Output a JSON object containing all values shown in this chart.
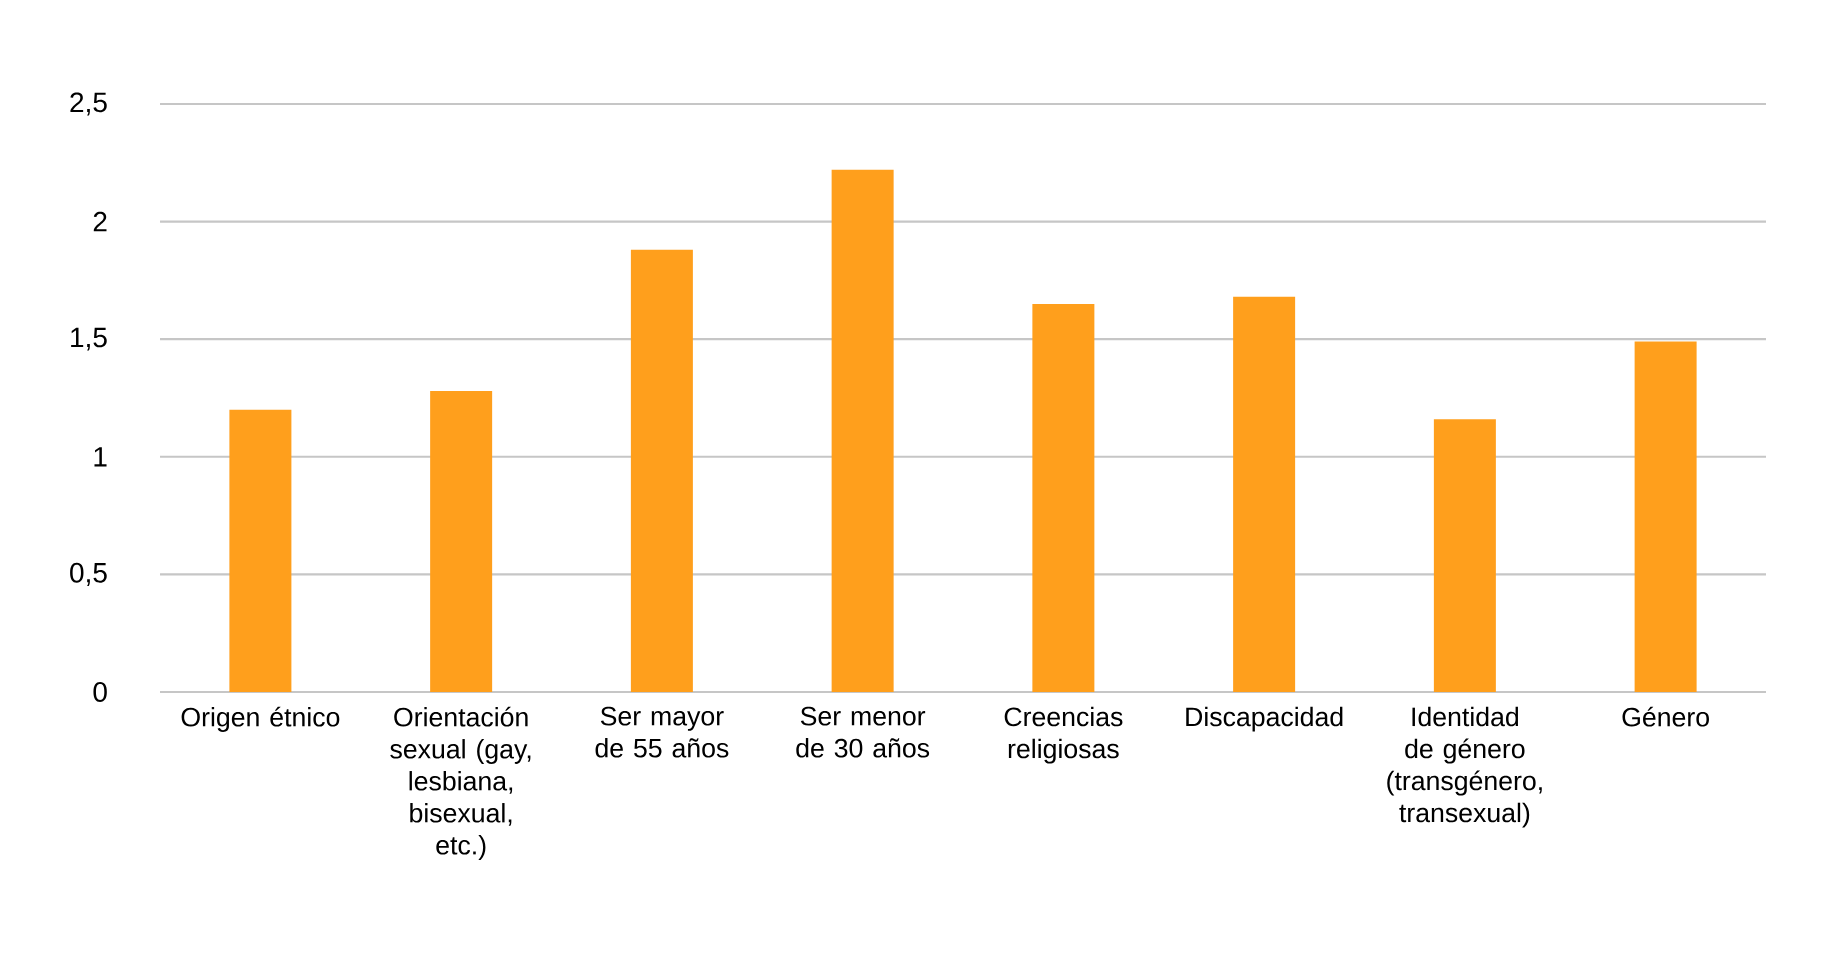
{
  "chart_data": {
    "type": "bar",
    "categories": [
      "Origen étnico",
      "Orientación sexual (gay, lesbiana, bisexual, etc.)",
      "Ser mayor de 55 años",
      "Ser menor de 30 años",
      "Creencias religiosas",
      "Discapacidad",
      "Identidad de género (transgénero, transexual)",
      "Género"
    ],
    "values": [
      1.2,
      1.28,
      1.88,
      2.22,
      1.65,
      1.68,
      1.16,
      1.49
    ],
    "color": "#ff9f1c",
    "ylim": [
      0,
      2.5
    ],
    "yticks": [
      0,
      {
        "value": 0.5,
        "label": "0,5"
      },
      1,
      {
        "value": 1.5,
        "label": "1,5"
      },
      2,
      {
        "value": 2.5,
        "label": "2,5"
      }
    ],
    "grid": "y"
  }
}
